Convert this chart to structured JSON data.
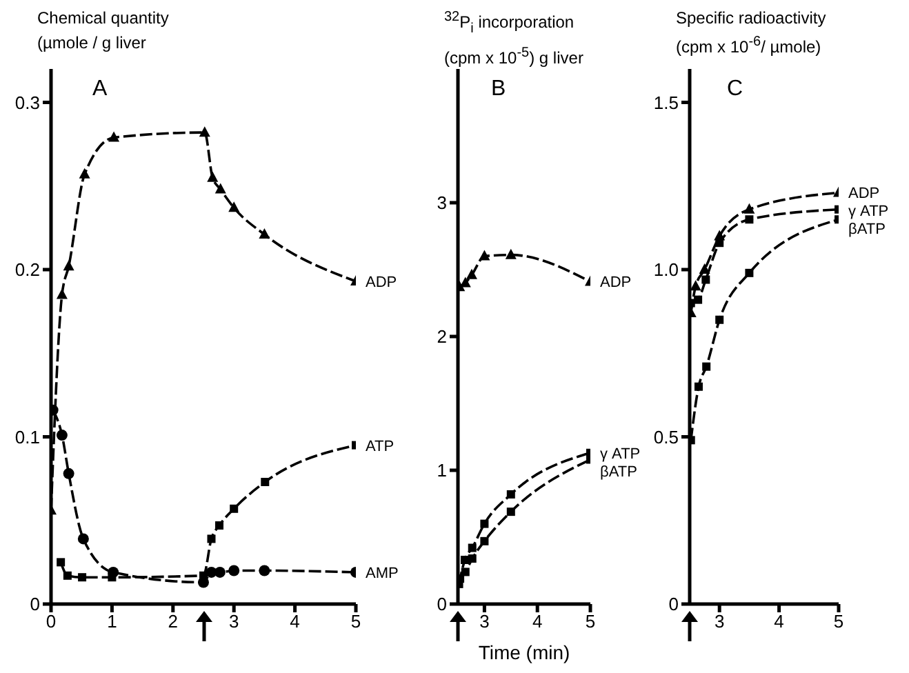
{
  "chart_data": [
    {
      "type": "line",
      "title": "A",
      "ylabel": "Chemical quantity\n(µmole / g liver",
      "xlim": [
        0,
        5
      ],
      "xticks": [
        0,
        1,
        2,
        3,
        4,
        5
      ],
      "ylim": [
        0,
        0.32
      ],
      "yticks": [
        0,
        0.1,
        0.2,
        0.3
      ],
      "line_style": "dashed",
      "series": [
        {
          "name": "ADP",
          "color": "#000000",
          "marker": "triangle",
          "x": [
            0,
            0.18,
            0.29,
            0.55,
            1.03,
            2.52,
            2.65,
            2.78,
            3.0,
            3.5,
            5.0
          ],
          "values": [
            0.056,
            0.185,
            0.202,
            0.257,
            0.279,
            0.282,
            0.255,
            0.248,
            0.237,
            0.221,
            0.193
          ]
        },
        {
          "name": "ATP",
          "color": "#000000",
          "marker": "square",
          "x": [
            0.16,
            0.27,
            0.51,
            1.0,
            2.5,
            2.63,
            2.76,
            3.0,
            3.51,
            5.0
          ],
          "values": [
            0.025,
            0.017,
            0.016,
            0.016,
            0.017,
            0.039,
            0.047,
            0.057,
            0.073,
            0.095
          ]
        },
        {
          "name": "AMP",
          "color": "#000000",
          "marker": "circle",
          "x": [
            0.03,
            0.18,
            0.29,
            0.53,
            1.02,
            2.5,
            2.63,
            2.77,
            3.0,
            3.5,
            5.0
          ],
          "values": [
            0.116,
            0.101,
            0.078,
            0.039,
            0.019,
            0.013,
            0.019,
            0.019,
            0.02,
            0.02,
            0.019
          ]
        }
      ]
    },
    {
      "type": "line",
      "title": "B",
      "ylabel": "$^{32}$P$_{i}$ incorporation\n(cpm x 10$^{-5}$) g liver",
      "xlabel": "Time (min)",
      "xlim": [
        2.5,
        5
      ],
      "xticks": [
        3,
        4,
        5
      ],
      "ylim": [
        0,
        4
      ],
      "yticks": [
        0,
        1,
        2,
        3
      ],
      "line_style": "dashed",
      "series": [
        {
          "name": "ADP",
          "color": "#000000",
          "marker": "triangle",
          "x": [
            2.53,
            2.64,
            2.76,
            3.0,
            3.5,
            5.0
          ],
          "values": [
            2.37,
            2.4,
            2.46,
            2.6,
            2.61,
            2.41
          ]
        },
        {
          "name": "γ ATP",
          "color": "#000000",
          "marker": "square",
          "x": [
            2.52,
            2.63,
            2.77,
            3.0,
            3.5,
            5.0
          ],
          "values": [
            0.15,
            0.33,
            0.42,
            0.6,
            0.82,
            1.13
          ]
        },
        {
          "name": "βATP",
          "color": "#000000",
          "marker": "square",
          "x": [
            2.54,
            2.64,
            2.77,
            3.0,
            3.5,
            5.0
          ],
          "values": [
            0.19,
            0.24,
            0.34,
            0.47,
            0.69,
            1.08
          ]
        }
      ]
    },
    {
      "type": "line",
      "title": "C",
      "ylabel": "Specific radioactivity\n(cpm x 10$^{-6}$/ µmole)",
      "xlim": [
        2.5,
        5
      ],
      "xticks": [
        3,
        4,
        5
      ],
      "ylim": [
        0,
        1.6
      ],
      "yticks": [
        0,
        0.5,
        {
          "value": 1,
          "label": "1.0"
        },
        1.5
      ],
      "line_style": "dashed",
      "series": [
        {
          "name": "ADP",
          "color": "#000000",
          "marker": "triangle",
          "x": [
            2.52,
            2.6,
            2.75,
            3.0,
            3.5,
            5.0
          ],
          "values": [
            0.87,
            0.95,
            1.0,
            1.1,
            1.18,
            1.23
          ]
        },
        {
          "name": "γ ATP",
          "color": "#000000",
          "marker": "square",
          "x": [
            2.52,
            2.64,
            2.77,
            3.0,
            3.5,
            5.0
          ],
          "values": [
            0.9,
            0.91,
            0.97,
            1.08,
            1.15,
            1.18
          ]
        },
        {
          "name": "βATP",
          "color": "#000000",
          "marker": "square",
          "x": [
            2.52,
            2.65,
            2.78,
            3.0,
            3.5,
            5.0
          ],
          "values": [
            0.49,
            0.65,
            0.71,
            0.85,
            0.99,
            1.15
          ]
        }
      ]
    }
  ]
}
